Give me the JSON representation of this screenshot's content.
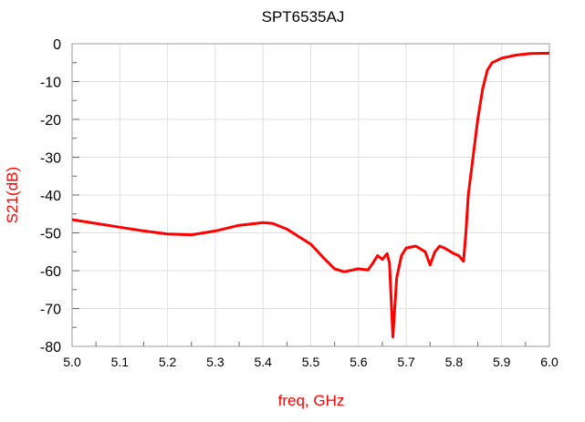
{
  "chart_data": {
    "type": "line",
    "title": "SPT6535AJ",
    "xlabel": "freq, GHz",
    "ylabel": "S21(dB)",
    "xlim": [
      5.0,
      6.0
    ],
    "ylim": [
      -80,
      0
    ],
    "xticks": [
      "5.0",
      "5.1",
      "5.2",
      "5.3",
      "5.4",
      "5.5",
      "5.6",
      "5.7",
      "5.8",
      "5.9",
      "6.0"
    ],
    "yticks": [
      "0",
      "-10",
      "-20",
      "-30",
      "-40",
      "-50",
      "-60",
      "-70",
      "-80"
    ],
    "grid": true,
    "colors": {
      "series": "#ff0000",
      "label": "#ff0000",
      "grid": "#e0e0e0"
    },
    "series": [
      {
        "name": "S21(dB)",
        "x": [
          5.0,
          5.05,
          5.1,
          5.15,
          5.2,
          5.25,
          5.3,
          5.35,
          5.4,
          5.42,
          5.45,
          5.5,
          5.53,
          5.55,
          5.57,
          5.6,
          5.62,
          5.63,
          5.64,
          5.65,
          5.66,
          5.665,
          5.672,
          5.68,
          5.69,
          5.7,
          5.72,
          5.74,
          5.75,
          5.76,
          5.77,
          5.78,
          5.8,
          5.81,
          5.82,
          5.825,
          5.83,
          5.84,
          5.85,
          5.86,
          5.87,
          5.88,
          5.9,
          5.93,
          5.96,
          6.0
        ],
        "y": [
          -46.5,
          -47.5,
          -48.5,
          -49.5,
          -50.3,
          -50.5,
          -49.5,
          -48,
          -47.3,
          -47.5,
          -49,
          -53,
          -57,
          -59.5,
          -60.3,
          -59.5,
          -59.8,
          -58,
          -56,
          -57,
          -55.5,
          -58,
          -77.5,
          -62,
          -56,
          -54,
          -53.5,
          -55,
          -58.5,
          -55,
          -53.5,
          -54,
          -55.5,
          -56,
          -57.5,
          -50,
          -40,
          -30,
          -20,
          -12,
          -7,
          -5,
          -3.8,
          -3,
          -2.6,
          -2.5
        ]
      }
    ]
  }
}
